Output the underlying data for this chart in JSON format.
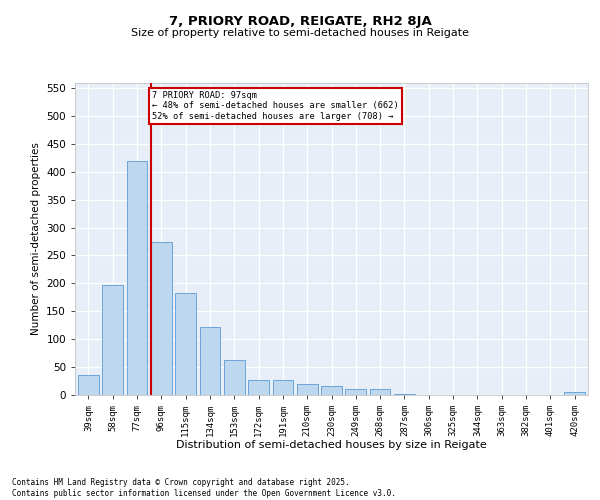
{
  "title1": "7, PRIORY ROAD, REIGATE, RH2 8JA",
  "title2": "Size of property relative to semi-detached houses in Reigate",
  "xlabel": "Distribution of semi-detached houses by size in Reigate",
  "ylabel": "Number of semi-detached properties",
  "categories": [
    "39sqm",
    "58sqm",
    "77sqm",
    "96sqm",
    "115sqm",
    "134sqm",
    "153sqm",
    "172sqm",
    "191sqm",
    "210sqm",
    "230sqm",
    "249sqm",
    "268sqm",
    "287sqm",
    "306sqm",
    "325sqm",
    "344sqm",
    "363sqm",
    "382sqm",
    "401sqm",
    "420sqm"
  ],
  "values": [
    35,
    197,
    420,
    275,
    182,
    122,
    62,
    26,
    26,
    20,
    17,
    10,
    10,
    2,
    0,
    0,
    0,
    0,
    0,
    0,
    5
  ],
  "bar_color": "#bdd7ee",
  "bar_edge_color": "#5b9bd5",
  "highlight_index": 3,
  "highlight_color": "#cc0000",
  "annotation_title": "7 PRIORY ROAD: 97sqm",
  "annotation_line1": "← 48% of semi-detached houses are smaller (662)",
  "annotation_line2": "52% of semi-detached houses are larger (708) →",
  "annotation_box_color": "#cc0000",
  "ylim": [
    0,
    560
  ],
  "yticks": [
    0,
    50,
    100,
    150,
    200,
    250,
    300,
    350,
    400,
    450,
    500,
    550
  ],
  "background_color": "#e8eef7",
  "grid_color": "#ffffff",
  "footer1": "Contains HM Land Registry data © Crown copyright and database right 2025.",
  "footer2": "Contains public sector information licensed under the Open Government Licence v3.0."
}
